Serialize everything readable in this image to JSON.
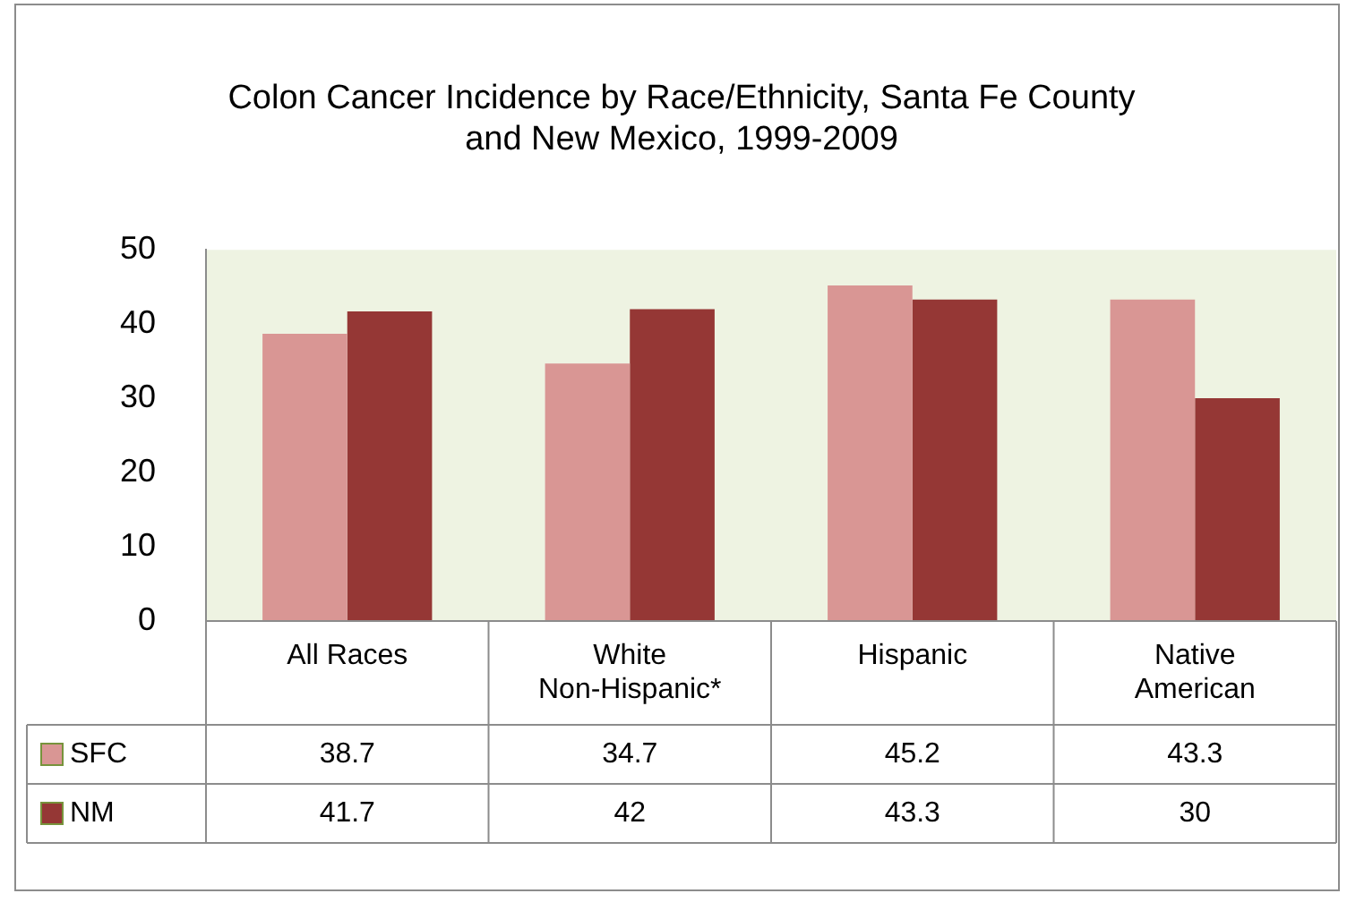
{
  "chart_data": {
    "type": "bar",
    "title": "Colon Cancer Incidence by Race/Ethnicity, Santa Fe County and New Mexico, 1999-2009",
    "categories": [
      "All Races",
      "White Non-Hispanic*",
      "Hispanic",
      "Native American"
    ],
    "series": [
      {
        "name": "SFC",
        "color": "#d99694",
        "values": [
          38.7,
          34.7,
          45.2,
          43.3
        ]
      },
      {
        "name": "NM",
        "color": "#953735",
        "values": [
          41.7,
          42,
          43.3,
          30
        ]
      }
    ],
    "ylim": [
      0,
      50
    ],
    "yticks": [
      0,
      10,
      20,
      30,
      40,
      50
    ],
    "grid": false,
    "legend": "bottom left",
    "data_labels": true
  }
}
